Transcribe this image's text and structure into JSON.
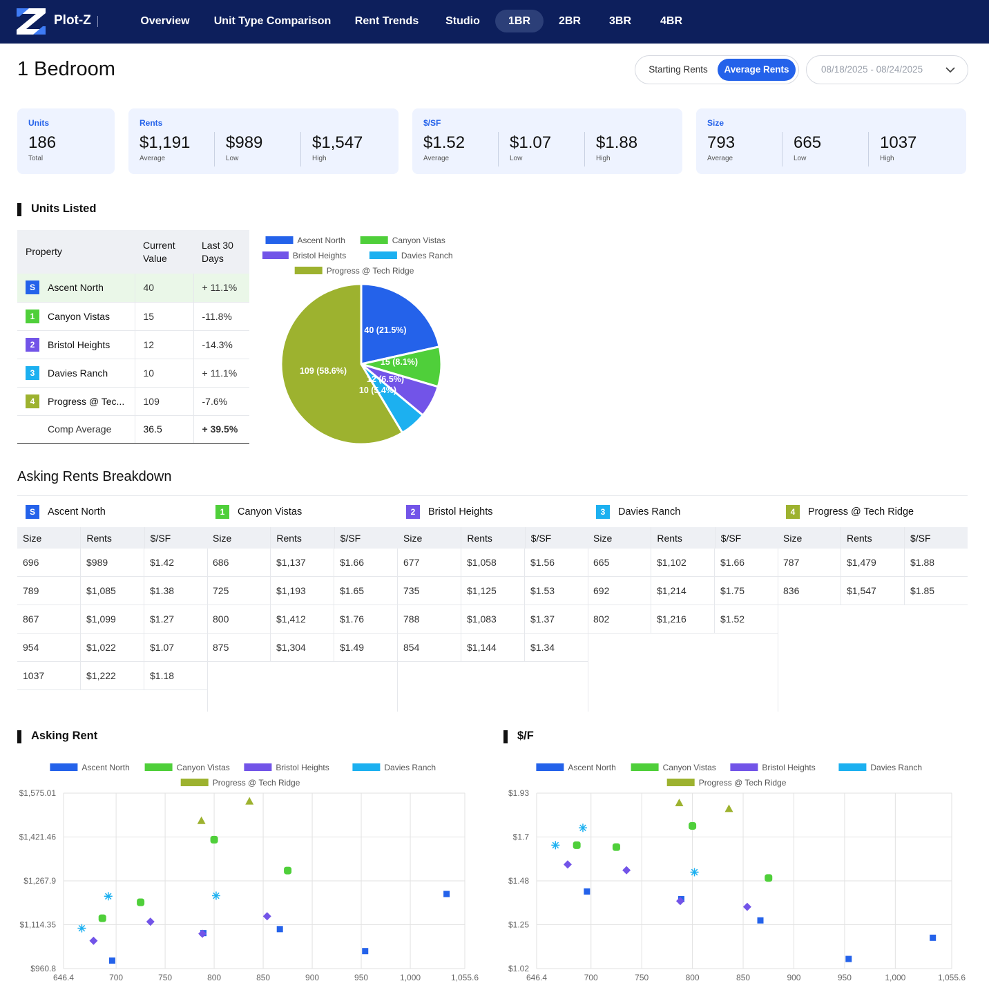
{
  "nav": {
    "brand": "Plot-Z",
    "items": [
      "Overview",
      "Unit Type Comparison",
      "Rent Trends",
      "Studio",
      "1BR",
      "2BR",
      "3BR",
      "4BR"
    ],
    "active": "1BR"
  },
  "page": {
    "title": "1 Bedroom",
    "toggle_off": "Starting Rents",
    "toggle_on": "Average Rents",
    "date_range": "08/18/2025 - 08/24/2025"
  },
  "cards": {
    "units": {
      "label": "Units",
      "value": "186",
      "sub": "Total"
    },
    "rents": {
      "label": "Rents",
      "avg": "$1,191",
      "low": "$989",
      "high": "$1,547"
    },
    "psf": {
      "label": "$/SF",
      "avg": "$1.52",
      "low": "$1.07",
      "high": "$1.88"
    },
    "size": {
      "label": "Size",
      "avg": "793",
      "low": "665",
      "high": "1037"
    },
    "sub_average": "Average",
    "sub_low": "Low",
    "sub_high": "High"
  },
  "units_listed": {
    "heading": "Units Listed",
    "col_property": "Property",
    "col_current_1": "Current",
    "col_current_2": "Value",
    "col_last_1": "Last 30",
    "col_last_2": "Days",
    "rows": [
      {
        "badge": "S",
        "color": "#2462ea",
        "name": "Ascent North",
        "value": "40",
        "change": "+ 11.1%",
        "trend": "pos"
      },
      {
        "badge": "1",
        "color": "#4fcf3a",
        "name": "Canyon Vistas",
        "value": "15",
        "change": "-11.8%",
        "trend": "neg"
      },
      {
        "badge": "2",
        "color": "#7254e8",
        "name": "Bristol Heights",
        "value": "12",
        "change": "-14.3%",
        "trend": "neg"
      },
      {
        "badge": "3",
        "color": "#1cb0f0",
        "name": "Davies Ranch",
        "value": "10",
        "change": "+ 11.1%",
        "trend": "pos"
      },
      {
        "badge": "4",
        "color": "#9db22f",
        "name": "Progress @ Tec...",
        "value": "109",
        "change": "-7.6%",
        "trend": "neg"
      }
    ],
    "average": {
      "name": "Comp Average",
      "value": "36.5",
      "change": "+ 39.5%"
    }
  },
  "pie": {
    "legend": [
      "Ascent North",
      "Canyon Vistas",
      "Bristol Heights",
      "Davies Ranch",
      "Progress @ Tech Ridge"
    ],
    "colors": [
      "#2462ea",
      "#4fcf3a",
      "#7254e8",
      "#1cb0f0",
      "#9db22f"
    ],
    "values": [
      40,
      15,
      12,
      10,
      109
    ],
    "labels": [
      "40 (21.5%)",
      "15 (8.1%)",
      "12 (6.5%)",
      "10 (5.4%)",
      "109 (58.6%)"
    ]
  },
  "breakdown": {
    "heading": "Asking Rents Breakdown",
    "columns": [
      "Size",
      "Rents",
      "$/SF"
    ],
    "properties": [
      {
        "badge": "S",
        "color": "#2462ea",
        "name": "Ascent North",
        "rows": [
          [
            "696",
            "$989",
            "$1.42"
          ],
          [
            "789",
            "$1,085",
            "$1.38"
          ],
          [
            "867",
            "$1,099",
            "$1.27"
          ],
          [
            "954",
            "$1,022",
            "$1.07"
          ],
          [
            "1037",
            "$1,222",
            "$1.18"
          ]
        ]
      },
      {
        "badge": "1",
        "color": "#4fcf3a",
        "name": "Canyon Vistas",
        "rows": [
          [
            "686",
            "$1,137",
            "$1.66"
          ],
          [
            "725",
            "$1,193",
            "$1.65"
          ],
          [
            "800",
            "$1,412",
            "$1.76"
          ],
          [
            "875",
            "$1,304",
            "$1.49"
          ]
        ]
      },
      {
        "badge": "2",
        "color": "#7254e8",
        "name": "Bristol Heights",
        "rows": [
          [
            "677",
            "$1,058",
            "$1.56"
          ],
          [
            "735",
            "$1,125",
            "$1.53"
          ],
          [
            "788",
            "$1,083",
            "$1.37"
          ],
          [
            "854",
            "$1,144",
            "$1.34"
          ]
        ]
      },
      {
        "badge": "3",
        "color": "#1cb0f0",
        "name": "Davies Ranch",
        "rows": [
          [
            "665",
            "$1,102",
            "$1.66"
          ],
          [
            "692",
            "$1,214",
            "$1.75"
          ],
          [
            "802",
            "$1,216",
            "$1.52"
          ]
        ]
      },
      {
        "badge": "4",
        "color": "#9db22f",
        "name": "Progress @ Tech Ridge",
        "rows": [
          [
            "787",
            "$1,479",
            "$1.88"
          ],
          [
            "836",
            "$1,547",
            "$1.85"
          ]
        ]
      }
    ]
  },
  "chart_data": [
    {
      "type": "scatter",
      "title": "Asking Rent",
      "xlim": [
        646.4,
        1055.6
      ],
      "ylim": [
        960.8,
        1575.01
      ],
      "x_ticks": [
        "646.4",
        "700",
        "750",
        "800",
        "850",
        "900",
        "950",
        "1,000",
        "1,055.6"
      ],
      "x_tick_values": [
        646.4,
        700,
        750,
        800,
        850,
        900,
        950,
        1000,
        1055.6
      ],
      "y_ticks": [
        "$960.8",
        "$1,114.35",
        "$1,267.9",
        "$1,421.46",
        "$1,575.01"
      ],
      "grid": true,
      "legend_position": "top",
      "series": [
        {
          "name": "Ascent North",
          "color": "#2462ea",
          "marker": "square",
          "points": [
            [
              696,
              989
            ],
            [
              789,
              1085
            ],
            [
              867,
              1099
            ],
            [
              954,
              1022
            ],
            [
              1037,
              1222
            ]
          ]
        },
        {
          "name": "Canyon Vistas",
          "color": "#4fcf3a",
          "marker": "rounded",
          "points": [
            [
              686,
              1137
            ],
            [
              725,
              1193
            ],
            [
              800,
              1412
            ],
            [
              875,
              1304
            ]
          ]
        },
        {
          "name": "Bristol Heights",
          "color": "#7254e8",
          "marker": "diamond",
          "points": [
            [
              677,
              1058
            ],
            [
              735,
              1125
            ],
            [
              788,
              1083
            ],
            [
              854,
              1144
            ]
          ]
        },
        {
          "name": "Davies Ranch",
          "color": "#1cb0f0",
          "marker": "star",
          "points": [
            [
              665,
              1102
            ],
            [
              692,
              1214
            ],
            [
              802,
              1216
            ]
          ]
        },
        {
          "name": "Progress @ Tech Ridge",
          "color": "#9db22f",
          "marker": "triangle",
          "points": [
            [
              787,
              1479
            ],
            [
              836,
              1547
            ]
          ]
        }
      ]
    },
    {
      "type": "scatter",
      "title": "$/F",
      "xlim": [
        646.4,
        1055.6
      ],
      "ylim": [
        1.02,
        1.93
      ],
      "x_ticks": [
        "646.4",
        "700",
        "750",
        "800",
        "850",
        "900",
        "950",
        "1,000",
        "1,055.6"
      ],
      "x_tick_values": [
        646.4,
        700,
        750,
        800,
        850,
        900,
        950,
        1000,
        1055.6
      ],
      "y_ticks": [
        "$1.02",
        "$1.25",
        "$1.48",
        "$1.7",
        "$1.93"
      ],
      "grid": true,
      "legend_position": "top",
      "series": [
        {
          "name": "Ascent North",
          "color": "#2462ea",
          "marker": "square",
          "points": [
            [
              696,
              1.42
            ],
            [
              789,
              1.38
            ],
            [
              867,
              1.27
            ],
            [
              954,
              1.07
            ],
            [
              1037,
              1.18
            ]
          ]
        },
        {
          "name": "Canyon Vistas",
          "color": "#4fcf3a",
          "marker": "rounded",
          "points": [
            [
              686,
              1.66
            ],
            [
              725,
              1.65
            ],
            [
              800,
              1.76
            ],
            [
              875,
              1.49
            ]
          ]
        },
        {
          "name": "Bristol Heights",
          "color": "#7254e8",
          "marker": "diamond",
          "points": [
            [
              677,
              1.56
            ],
            [
              735,
              1.53
            ],
            [
              788,
              1.37
            ],
            [
              854,
              1.34
            ]
          ]
        },
        {
          "name": "Davies Ranch",
          "color": "#1cb0f0",
          "marker": "star",
          "points": [
            [
              665,
              1.66
            ],
            [
              692,
              1.75
            ],
            [
              802,
              1.52
            ]
          ]
        },
        {
          "name": "Progress @ Tech Ridge",
          "color": "#9db22f",
          "marker": "triangle",
          "points": [
            [
              787,
              1.88
            ],
            [
              836,
              1.85
            ]
          ]
        }
      ]
    }
  ]
}
